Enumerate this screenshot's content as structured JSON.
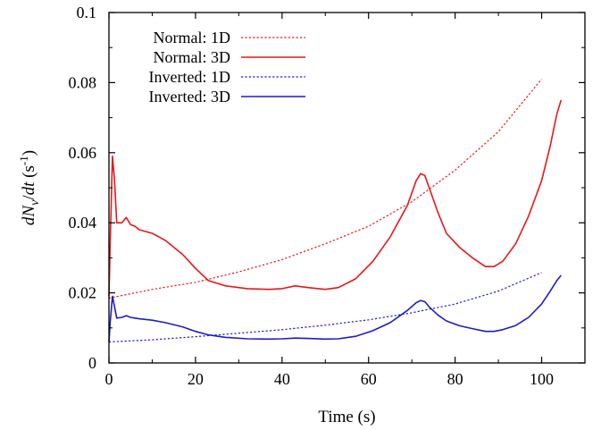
{
  "chart_data": {
    "type": "line",
    "xlabel": "Time (s)",
    "ylabel": {
      "d1": "d",
      "N": "N",
      "nu": "ν",
      "slash": "/",
      "dt": "dt",
      "open": " (s",
      "exp": "-1",
      "close": ")"
    },
    "xlim": [
      0,
      110
    ],
    "ylim": [
      0,
      0.1
    ],
    "xticks": [
      0,
      20,
      40,
      60,
      80,
      100
    ],
    "yticks": [
      0,
      0.02,
      0.04,
      0.06,
      0.08,
      0.1
    ],
    "xtick_labels": [
      "0",
      "20",
      "40",
      "60",
      "80",
      "100"
    ],
    "ytick_labels": [
      "0",
      "0.02",
      "0.04",
      "0.06",
      "0.08",
      "0.1"
    ],
    "grid": false,
    "legend_position": "top-left",
    "series": [
      {
        "name": "Normal: 1D",
        "color": "#e8171a",
        "style": "dotted",
        "points": [
          [
            0,
            0.0185
          ],
          [
            10,
            0.021
          ],
          [
            20,
            0.023
          ],
          [
            30,
            0.026
          ],
          [
            40,
            0.0295
          ],
          [
            50,
            0.034
          ],
          [
            60,
            0.039
          ],
          [
            70,
            0.046
          ],
          [
            80,
            0.055
          ],
          [
            90,
            0.066
          ],
          [
            100,
            0.081
          ]
        ]
      },
      {
        "name": "Normal: 3D",
        "color": "#e8171a",
        "style": "solid",
        "points": [
          [
            0,
            0.019
          ],
          [
            0.3,
            0.035
          ],
          [
            0.8,
            0.059
          ],
          [
            1.3,
            0.052
          ],
          [
            1.8,
            0.04
          ],
          [
            3,
            0.04
          ],
          [
            4,
            0.0415
          ],
          [
            5,
            0.0395
          ],
          [
            6,
            0.039
          ],
          [
            7,
            0.038
          ],
          [
            10,
            0.037
          ],
          [
            13,
            0.035
          ],
          [
            17,
            0.031
          ],
          [
            20,
            0.027
          ],
          [
            23,
            0.0235
          ],
          [
            27,
            0.022
          ],
          [
            32,
            0.0212
          ],
          [
            37,
            0.021
          ],
          [
            40,
            0.0212
          ],
          [
            43,
            0.022
          ],
          [
            46,
            0.0215
          ],
          [
            50,
            0.021
          ],
          [
            53,
            0.0215
          ],
          [
            57,
            0.024
          ],
          [
            61,
            0.029
          ],
          [
            65,
            0.036
          ],
          [
            69,
            0.045
          ],
          [
            71,
            0.052
          ],
          [
            72,
            0.054
          ],
          [
            73,
            0.0535
          ],
          [
            74,
            0.05
          ],
          [
            76,
            0.043
          ],
          [
            78,
            0.037
          ],
          [
            81,
            0.033
          ],
          [
            84,
            0.03
          ],
          [
            87,
            0.0275
          ],
          [
            89,
            0.0275
          ],
          [
            91,
            0.029
          ],
          [
            94,
            0.034
          ],
          [
            97,
            0.042
          ],
          [
            100,
            0.052
          ],
          [
            102,
            0.062
          ],
          [
            103.5,
            0.071
          ],
          [
            104.5,
            0.075
          ]
        ]
      },
      {
        "name": "Inverted: 1D",
        "color": "#1c1ccc",
        "style": "dotted",
        "points": [
          [
            0,
            0.006
          ],
          [
            10,
            0.0066
          ],
          [
            20,
            0.0075
          ],
          [
            30,
            0.0085
          ],
          [
            40,
            0.0095
          ],
          [
            50,
            0.0108
          ],
          [
            60,
            0.0123
          ],
          [
            70,
            0.0143
          ],
          [
            80,
            0.0168
          ],
          [
            90,
            0.0205
          ],
          [
            100,
            0.0258
          ]
        ]
      },
      {
        "name": "Inverted: 3D",
        "color": "#1c1ccc",
        "style": "solid",
        "points": [
          [
            0,
            0.006
          ],
          [
            0.3,
            0.012
          ],
          [
            0.8,
            0.019
          ],
          [
            1.3,
            0.016
          ],
          [
            1.8,
            0.0128
          ],
          [
            3,
            0.013
          ],
          [
            4,
            0.0135
          ],
          [
            5,
            0.013
          ],
          [
            6,
            0.0128
          ],
          [
            7,
            0.0126
          ],
          [
            10,
            0.0122
          ],
          [
            13,
            0.0115
          ],
          [
            17,
            0.0103
          ],
          [
            20,
            0.009
          ],
          [
            23,
            0.008
          ],
          [
            27,
            0.0073
          ],
          [
            32,
            0.0069
          ],
          [
            37,
            0.0068
          ],
          [
            40,
            0.0069
          ],
          [
            43,
            0.0071
          ],
          [
            46,
            0.007
          ],
          [
            50,
            0.0068
          ],
          [
            53,
            0.0069
          ],
          [
            57,
            0.0076
          ],
          [
            61,
            0.0092
          ],
          [
            65,
            0.0115
          ],
          [
            69,
            0.015
          ],
          [
            71,
            0.0172
          ],
          [
            72,
            0.0178
          ],
          [
            73,
            0.0175
          ],
          [
            74,
            0.016
          ],
          [
            76,
            0.0137
          ],
          [
            78,
            0.012
          ],
          [
            81,
            0.0106
          ],
          [
            84,
            0.0098
          ],
          [
            87,
            0.009
          ],
          [
            89,
            0.009
          ],
          [
            91,
            0.0095
          ],
          [
            94,
            0.0107
          ],
          [
            97,
            0.013
          ],
          [
            100,
            0.0168
          ],
          [
            102,
            0.0205
          ],
          [
            103.5,
            0.0235
          ],
          [
            104.5,
            0.025
          ]
        ]
      }
    ]
  }
}
